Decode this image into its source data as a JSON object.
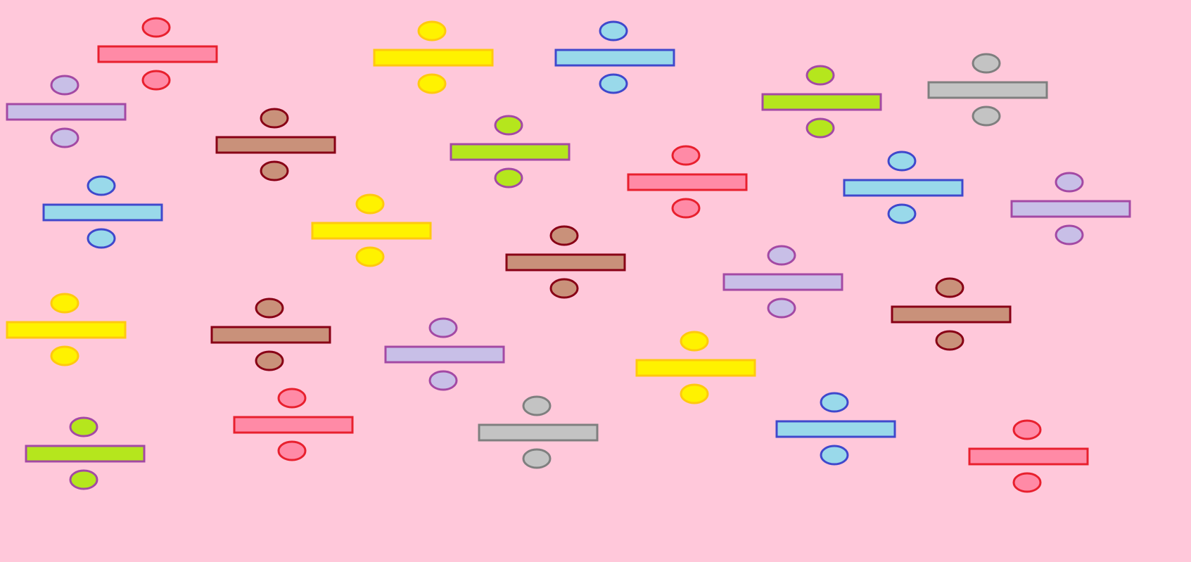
{
  "background": "#ffc8da",
  "palette": {
    "red": {
      "fill": "#ff8aa6",
      "stroke": "#e8202e"
    },
    "yellow": {
      "fill": "#fff200",
      "stroke": "#ffc90e"
    },
    "blue": {
      "fill": "#99d9ea",
      "stroke": "#3f48cc"
    },
    "lime": {
      "fill": "#b5e61d",
      "stroke": "#a349a4"
    },
    "gray": {
      "fill": "#c3c3c3",
      "stroke": "#7f7f7f"
    },
    "lilac": {
      "fill": "#c8bfe7",
      "stroke": "#a349a4"
    },
    "brown": {
      "fill": "#c9917a",
      "stroke": "#880015"
    }
  },
  "division_signs": [
    {
      "color": "red"
    },
    {
      "color": "yellow"
    },
    {
      "color": "blue"
    },
    {
      "color": "lime"
    },
    {
      "color": "gray"
    },
    {
      "color": "lilac"
    },
    {
      "color": "brown"
    },
    {
      "color": "lime"
    },
    {
      "color": "red"
    },
    {
      "color": "blue"
    },
    {
      "color": "lilac"
    },
    {
      "color": "blue"
    },
    {
      "color": "yellow"
    },
    {
      "color": "brown"
    },
    {
      "color": "lilac"
    },
    {
      "color": "brown"
    },
    {
      "color": "yellow"
    },
    {
      "color": "brown"
    },
    {
      "color": "lilac"
    },
    {
      "color": "yellow"
    },
    {
      "color": "lime"
    },
    {
      "color": "red"
    },
    {
      "color": "gray"
    },
    {
      "color": "blue"
    },
    {
      "color": "red"
    }
  ]
}
